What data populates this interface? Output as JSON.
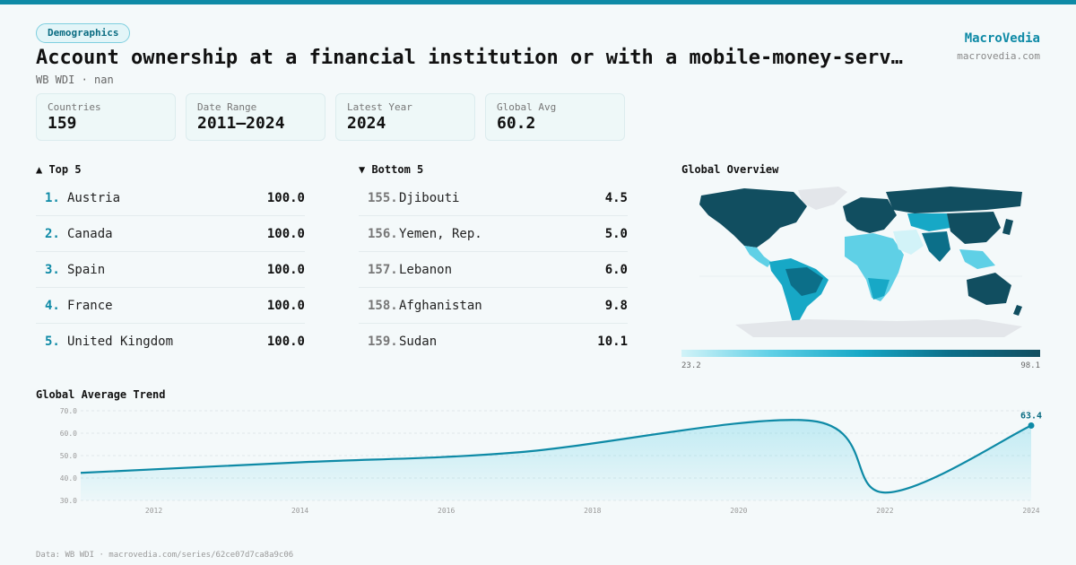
{
  "header": {
    "badge": "Demographics",
    "title": "Account ownership at a financial institution or with a mobile-money-serv…",
    "subtitle": "WB WDI · nan",
    "brand_name": "MacroVedia",
    "brand_url": "macrovedia.com"
  },
  "stats": [
    {
      "label": "Countries",
      "value": "159"
    },
    {
      "label": "Date Range",
      "value": "2011–2024"
    },
    {
      "label": "Latest Year",
      "value": "2024"
    },
    {
      "label": "Global Avg",
      "value": "60.2"
    }
  ],
  "top5": {
    "heading": "▲ Top 5",
    "rows": [
      {
        "rank": "1.",
        "name": "Austria",
        "value": "100.0"
      },
      {
        "rank": "2.",
        "name": "Canada",
        "value": "100.0"
      },
      {
        "rank": "3.",
        "name": "Spain",
        "value": "100.0"
      },
      {
        "rank": "4.",
        "name": "France",
        "value": "100.0"
      },
      {
        "rank": "5.",
        "name": "United Kingdom",
        "value": "100.0"
      }
    ]
  },
  "bottom5": {
    "heading": "▼ Bottom 5",
    "rows": [
      {
        "rank": "155.",
        "name": "Djibouti",
        "value": "4.5"
      },
      {
        "rank": "156.",
        "name": "Yemen, Rep.",
        "value": "5.0"
      },
      {
        "rank": "157.",
        "name": "Lebanon",
        "value": "6.0"
      },
      {
        "rank": "158.",
        "name": "Afghanistan",
        "value": "9.8"
      },
      {
        "rank": "159.",
        "name": "Sudan",
        "value": "10.1"
      }
    ]
  },
  "map": {
    "heading": "Global Overview",
    "legend_min": "23.2",
    "legend_max": "98.1",
    "colors": {
      "low": "#d2f3f8",
      "mid": "#17a8c6",
      "high": "#114e60",
      "nodata": "#e3e6ea"
    }
  },
  "trend": {
    "heading": "Global Average Trend",
    "last_label": "63.4"
  },
  "chart_data": {
    "type": "area",
    "title": "Global Average Trend",
    "x": [
      2011,
      2014,
      2017,
      2021,
      2022,
      2024
    ],
    "values": [
      42.3,
      47.0,
      51.5,
      65.5,
      33.5,
      63.4
    ],
    "xticks": [
      "2012",
      "2014",
      "2016",
      "2018",
      "2020",
      "2022",
      "2024"
    ],
    "yticks": [
      "30.0",
      "40.0",
      "50.0",
      "60.0",
      "70.0"
    ],
    "xlim": [
      2011,
      2024
    ],
    "ylim": [
      30,
      70
    ],
    "grid": true,
    "color": "#0e8aa6"
  },
  "footer": "Data: WB WDI · macrovedia.com/series/62ce07d7ca8a9c06"
}
